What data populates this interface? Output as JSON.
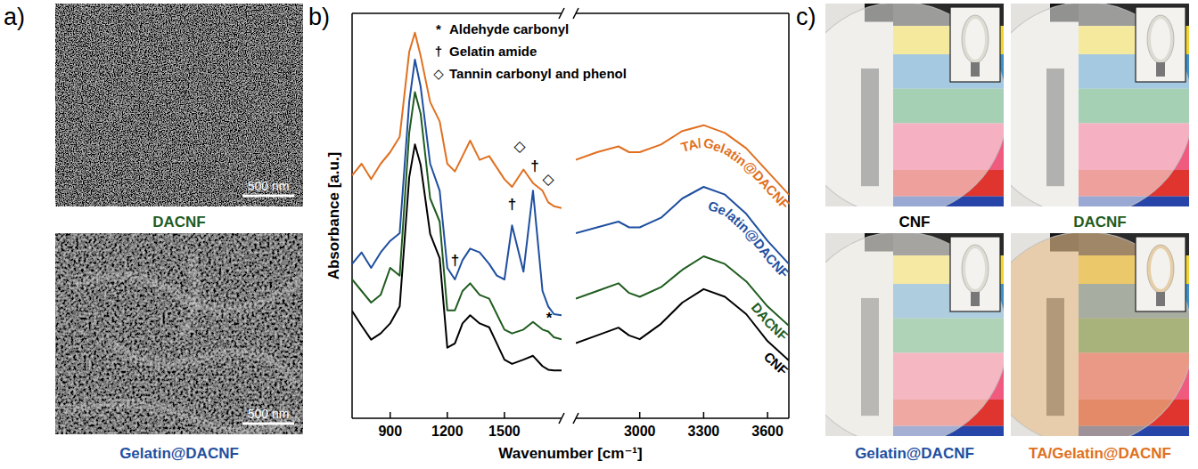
{
  "panels": {
    "a": {
      "letter": "a)",
      "images": [
        {
          "caption": "DACNF",
          "color": "#1f5c1f",
          "scale_bar": "500 nm"
        },
        {
          "caption": "Gelatin@DACNF",
          "color": "#1f4f9f",
          "scale_bar": "500 nm"
        }
      ]
    },
    "b": {
      "letter": "b)"
    },
    "c": {
      "letter": "c)",
      "photos": [
        {
          "caption": "CNF",
          "color": "#000000"
        },
        {
          "caption": "DACNF",
          "color": "#1f5c1f"
        },
        {
          "caption": "Gelatin@DACNF",
          "color": "#1f4f9f"
        },
        {
          "caption": "TA/Gelatin@DACNF",
          "color": "#e07020"
        }
      ]
    }
  },
  "chart_data": [
    {
      "type": "line",
      "ylabel": "Absorbance [a.u.]",
      "xlabel": "Wavenumber [cm⁻¹]",
      "x": [
        700,
        750,
        800,
        850,
        900,
        950,
        1000,
        1030,
        1060,
        1110,
        1160,
        1200,
        1240,
        1280,
        1320,
        1370,
        1420,
        1460,
        1500,
        1540,
        1600,
        1650,
        1700,
        1730,
        1760,
        1800
      ],
      "xlim": [
        700,
        1800
      ],
      "xticks": [
        900,
        1200,
        1500
      ],
      "ylim": [
        0,
        10.5
      ],
      "tick_labels": "x",
      "series": [
        {
          "color": "#000000",
          "values": [
            2.78,
            2.4,
            2.04,
            2.2,
            2.46,
            2.9,
            6.25,
            7.1,
            6.57,
            4.78,
            4.15,
            1.83,
            1.94,
            2.46,
            2.67,
            2.46,
            2.36,
            1.94,
            1.52,
            1.41,
            1.52,
            1.62,
            1.35,
            1.26,
            1.24,
            1.24
          ]
        },
        {
          "color": "#1f5c1f",
          "values": [
            3.6,
            3.3,
            3.0,
            3.2,
            3.9,
            3.7,
            7.4,
            8.46,
            7.9,
            5.7,
            5.1,
            2.8,
            2.8,
            3.3,
            3.5,
            3.2,
            3.1,
            2.7,
            2.3,
            2.2,
            2.3,
            2.5,
            2.3,
            2.25,
            2.1,
            2.05
          ]
        },
        {
          "color": "#1f4f9f",
          "values": [
            4.0,
            4.3,
            3.9,
            4.3,
            4.6,
            4.8,
            8.2,
            9.3,
            8.6,
            6.6,
            5.9,
            3.9,
            3.6,
            4.1,
            4.4,
            4.3,
            4.0,
            3.7,
            3.6,
            5.0,
            3.8,
            5.9,
            3.3,
            2.9,
            2.7,
            2.67
          ]
        },
        {
          "color": "#e07020",
          "values": [
            6.3,
            6.6,
            6.2,
            6.6,
            6.9,
            7.3,
            9.5,
            10.0,
            9.4,
            8.2,
            7.7,
            6.6,
            6.4,
            6.8,
            7.2,
            6.7,
            6.8,
            6.5,
            6.2,
            6.0,
            6.45,
            6.1,
            5.9,
            5.6,
            5.5,
            5.45
          ]
        }
      ],
      "annotations": [
        {
          "text": "*",
          "x": 1735,
          "y": 2.6
        },
        {
          "text": "†",
          "x": 1240,
          "y": 4.1
        },
        {
          "text": "†",
          "x": 1540,
          "y": 5.55
        },
        {
          "text": "†",
          "x": 1660,
          "y": 6.55
        },
        {
          "text": "◇",
          "x": 1580,
          "y": 7.05
        },
        {
          "text": "◇",
          "x": 1730,
          "y": 6.2
        }
      ],
      "key": [
        {
          "symbol": "*",
          "label": "Aldehyde carbonyl"
        },
        {
          "symbol": "†",
          "label": "Gelatin amide"
        },
        {
          "symbol": "◇",
          "label": "Tannin carbonyl and phenol"
        }
      ]
    },
    {
      "type": "line",
      "x": [
        2700,
        2800,
        2900,
        2950,
        3000,
        3100,
        3200,
        3300,
        3400,
        3500,
        3600,
        3700
      ],
      "xlim": [
        2700,
        3700
      ],
      "xticks": [
        3000,
        3300,
        3600
      ],
      "ylim": [
        0,
        10.5
      ],
      "tick_labels": "x",
      "series": [
        {
          "name": "CNF",
          "color": "#000000",
          "values": [
            1.95,
            2.15,
            2.35,
            2.15,
            2.05,
            2.45,
            3.0,
            3.35,
            3.15,
            2.7,
            2.0,
            1.5
          ]
        },
        {
          "name": "DACNF",
          "color": "#1f5c1f",
          "values": [
            3.1,
            3.3,
            3.5,
            3.25,
            3.15,
            3.4,
            3.85,
            4.2,
            4.0,
            3.55,
            2.9,
            2.4
          ]
        },
        {
          "name": "Gelatin@DACNF",
          "color": "#1f4f9f",
          "values": [
            4.8,
            4.95,
            5.1,
            4.95,
            4.95,
            5.2,
            5.7,
            6.0,
            5.8,
            5.3,
            4.6,
            4.0
          ]
        },
        {
          "name": "TA/Gelatin@DACNF",
          "color": "#e07020",
          "values": [
            6.7,
            6.9,
            7.05,
            6.9,
            6.9,
            7.1,
            7.45,
            7.6,
            7.4,
            7.0,
            6.4,
            5.8
          ]
        }
      ]
    }
  ]
}
